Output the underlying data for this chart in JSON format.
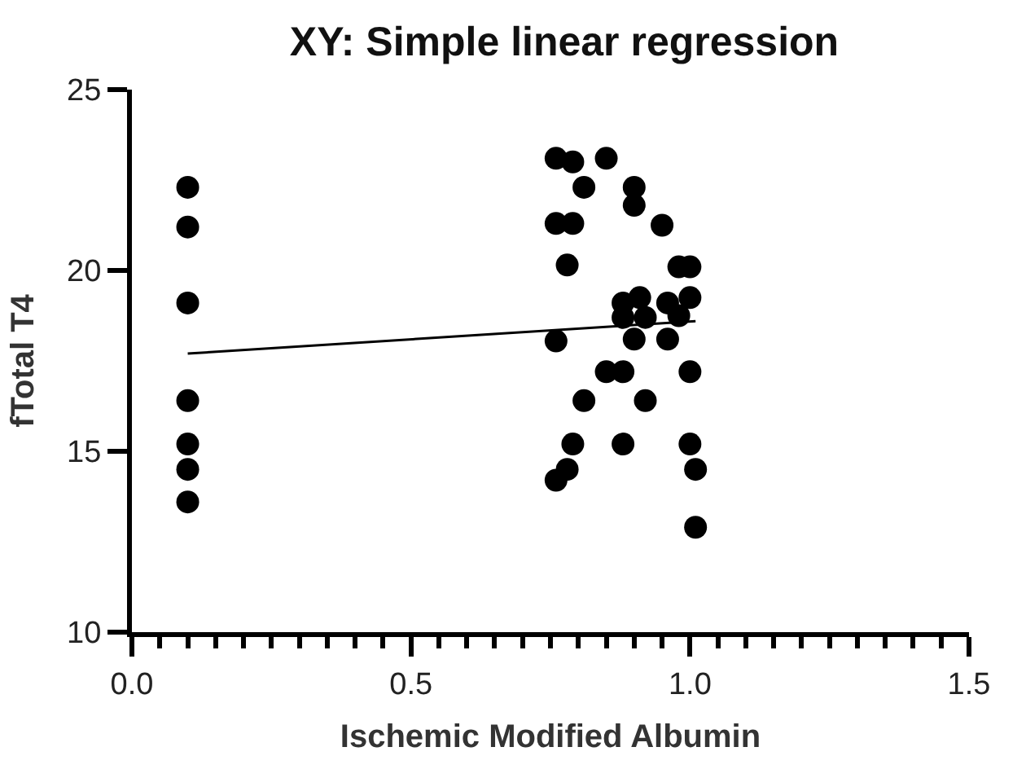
{
  "chart_data": {
    "type": "scatter",
    "title": "XY: Simple linear regression",
    "xlabel": "Ischemic Modified Albumin",
    "ylabel": "fTotal T4",
    "xlim": [
      0,
      1.5
    ],
    "ylim": [
      10,
      25
    ],
    "xticks": [
      {
        "value": 0,
        "label": "0.0"
      },
      {
        "value": 0.05,
        "label": null
      },
      {
        "value": 0.1,
        "label": null
      },
      {
        "value": 0.15,
        "label": null
      },
      {
        "value": 0.2,
        "label": null
      },
      {
        "value": 0.25,
        "label": null
      },
      {
        "value": 0.3,
        "label": null
      },
      {
        "value": 0.35,
        "label": null
      },
      {
        "value": 0.4,
        "label": null
      },
      {
        "value": 0.45,
        "label": null
      },
      {
        "value": 0.5,
        "label": "0.5"
      },
      {
        "value": 0.55,
        "label": null
      },
      {
        "value": 0.6,
        "label": null
      },
      {
        "value": 0.65,
        "label": null
      },
      {
        "value": 0.7,
        "label": null
      },
      {
        "value": 0.75,
        "label": null
      },
      {
        "value": 0.8,
        "label": null
      },
      {
        "value": 0.85,
        "label": null
      },
      {
        "value": 0.9,
        "label": null
      },
      {
        "value": 0.95,
        "label": null
      },
      {
        "value": 1.0,
        "label": "1.0"
      },
      {
        "value": 1.05,
        "label": null
      },
      {
        "value": 1.1,
        "label": null
      },
      {
        "value": 1.15,
        "label": null
      },
      {
        "value": 1.2,
        "label": null
      },
      {
        "value": 1.25,
        "label": null
      },
      {
        "value": 1.3,
        "label": null
      },
      {
        "value": 1.35,
        "label": null
      },
      {
        "value": 1.4,
        "label": null
      },
      {
        "value": 1.45,
        "label": null
      },
      {
        "value": 1.5,
        "label": "1.5"
      }
    ],
    "yticks": [
      10,
      15,
      20,
      25
    ],
    "marker": "circle",
    "series": [
      {
        "color": "#000000",
        "x": [
          0.1,
          0.1,
          0.1,
          0.1,
          0.1,
          0.1,
          0.1,
          0.76,
          0.79,
          0.85,
          0.81,
          0.9,
          0.9,
          0.76,
          0.79,
          0.95,
          0.78,
          0.98,
          1.0,
          0.88,
          0.91,
          0.96,
          1.0,
          0.88,
          0.92,
          0.98,
          0.76,
          0.9,
          0.96,
          0.85,
          0.88,
          1.0,
          0.81,
          0.92,
          0.79,
          0.88,
          1.0,
          1.01,
          0.78,
          0.76,
          1.01
        ],
        "values": [
          22.3,
          21.2,
          19.1,
          16.4,
          15.2,
          14.5,
          13.6,
          23.1,
          23.0,
          23.1,
          22.3,
          22.3,
          21.8,
          21.3,
          21.3,
          21.25,
          20.15,
          20.1,
          20.1,
          19.1,
          19.25,
          19.1,
          19.25,
          18.7,
          18.7,
          18.75,
          18.05,
          18.1,
          18.1,
          17.2,
          17.2,
          17.2,
          16.4,
          16.4,
          15.2,
          15.2,
          15.2,
          14.5,
          14.5,
          14.2,
          12.9
        ]
      },
      {
        "type": "line",
        "color": "#000000",
        "marker": "none",
        "line_style": "solid",
        "x": [
          0.1,
          1.01
        ],
        "values": [
          17.7,
          18.6
        ]
      }
    ]
  }
}
